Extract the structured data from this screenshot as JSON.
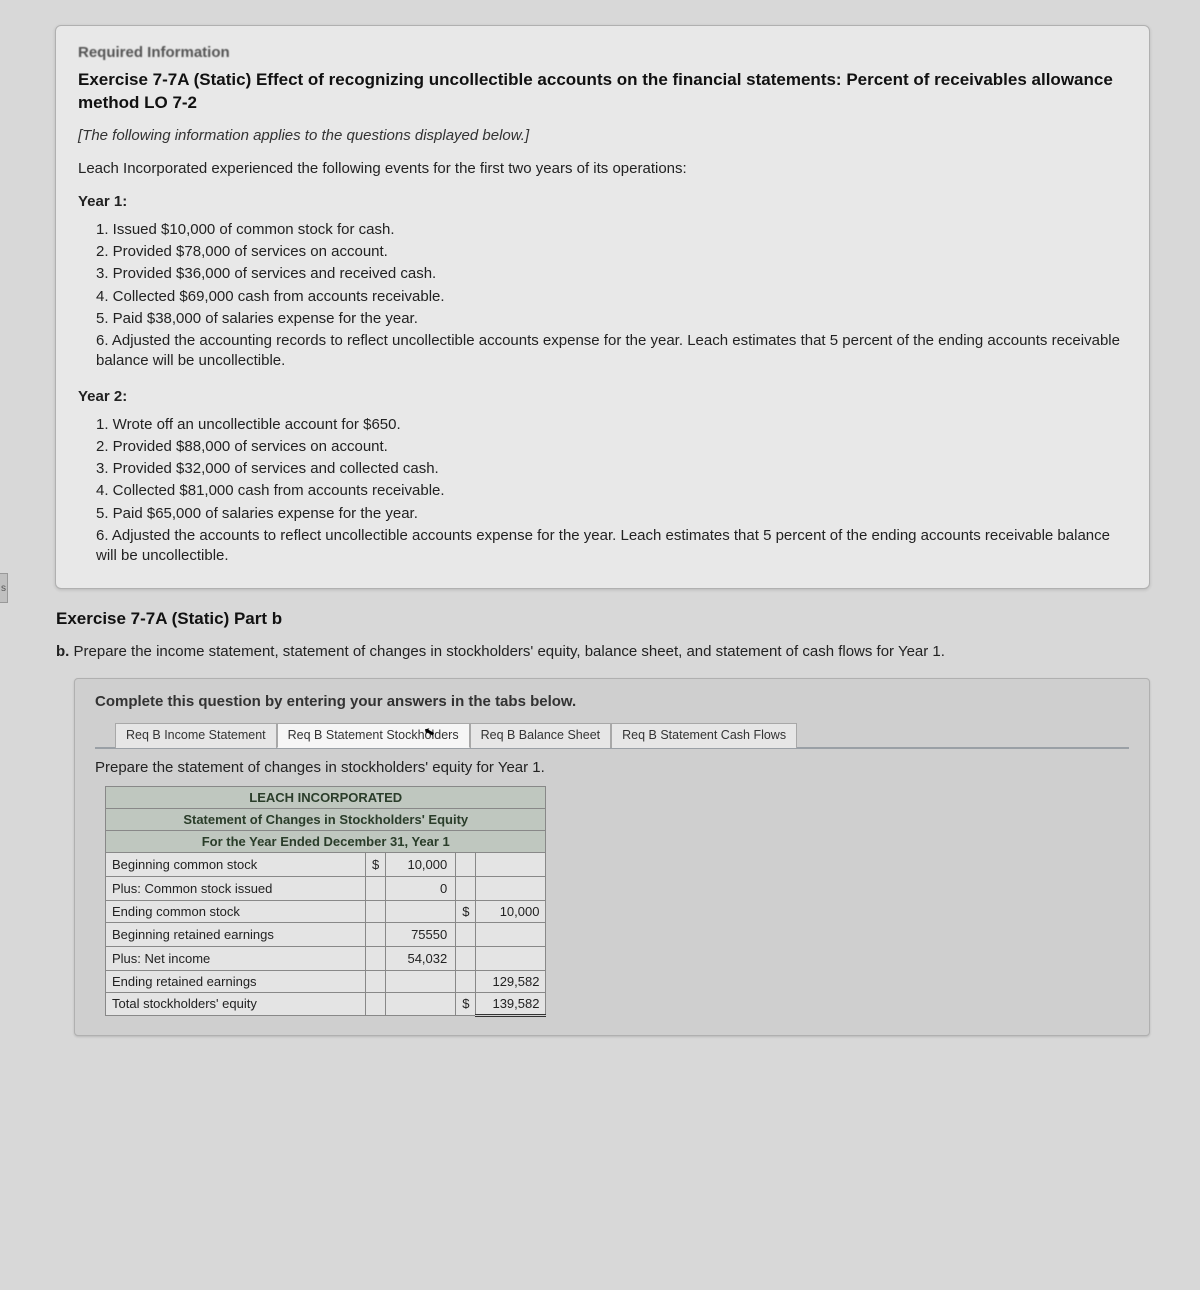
{
  "left_tab_char": "s",
  "required_info_label": "Required Information",
  "exercise_title": "Exercise 7-7A (Static) Effect of recognizing uncollectible accounts on the financial statements: Percent of receivables allowance method LO 7-2",
  "applies_note": "[The following information applies to the questions displayed below.]",
  "intro_line": "Leach Incorporated experienced the following events for the first two years of its operations:",
  "year1_label": "Year 1:",
  "year1_events": [
    "1. Issued $10,000 of common stock for cash.",
    "2. Provided $78,000 of services on account.",
    "3. Provided $36,000 of services and received cash.",
    "4. Collected $69,000 cash from accounts receivable.",
    "5. Paid $38,000 of salaries expense for the year.",
    "6. Adjusted the accounting records to reflect uncollectible accounts expense for the year. Leach estimates that 5 percent of the ending accounts receivable balance will be uncollectible."
  ],
  "year2_label": "Year 2:",
  "year2_events": [
    "1. Wrote off an uncollectible account for $650.",
    "2. Provided $88,000 of services on account.",
    "3. Provided $32,000 of services and collected cash.",
    "4. Collected $81,000 cash from accounts receivable.",
    "5. Paid $65,000 of salaries expense for the year.",
    "6. Adjusted the accounts to reflect uncollectible accounts expense for the year. Leach estimates that 5 percent of the ending accounts receivable balance will be uncollectible."
  ],
  "part_title": "Exercise 7-7A (Static) Part b",
  "part_lead": "b.",
  "part_desc": " Prepare the income statement, statement of changes in stockholders' equity, balance sheet, and statement of cash flows for Year 1.",
  "instr_line": "Complete this question by entering your answers in the tabs below.",
  "tabs": [
    {
      "label": "Req B Income Statement",
      "active": false
    },
    {
      "label": "Req B Statement Stockholders",
      "active": true,
      "has_cursor": true
    },
    {
      "label": "Req B Balance Sheet",
      "active": false
    },
    {
      "label": "Req B Statement Cash Flows",
      "active": false
    }
  ],
  "prepare_line": "Prepare the statement of changes in stockholders' equity for Year 1.",
  "stmt": {
    "company": "LEACH INCORPORATED",
    "title": "Statement of Changes in Stockholders' Equity",
    "period": "For the Year Ended December 31, Year 1",
    "colors": {
      "header_bg": "#bfc7bf",
      "header_text": "#2a3d2a",
      "cell_bg": "#e4e4e4",
      "border": "#888888"
    },
    "rows": [
      {
        "label": "Beginning common stock",
        "cur1": "$",
        "val1": "10,000",
        "cur2": "",
        "val2": ""
      },
      {
        "label": "Plus: Common stock issued",
        "cur1": "",
        "val1": "0",
        "cur2": "",
        "val2": ""
      },
      {
        "label": "Ending common stock",
        "cur1": "",
        "val1": "",
        "cur2": "$",
        "val2": "10,000"
      },
      {
        "label": "Beginning retained earnings",
        "cur1": "",
        "val1": "75550",
        "cur2": "",
        "val2": ""
      },
      {
        "label": "Plus: Net income",
        "cur1": "",
        "val1": "54,032",
        "cur2": "",
        "val2": ""
      },
      {
        "label": "Ending retained earnings",
        "cur1": "",
        "val1": "",
        "cur2": "",
        "val2": "129,582"
      },
      {
        "label": "Total stockholders' equity",
        "cur1": "",
        "val1": "",
        "cur2": "$",
        "val2": "139,582",
        "dbl": true
      }
    ]
  }
}
